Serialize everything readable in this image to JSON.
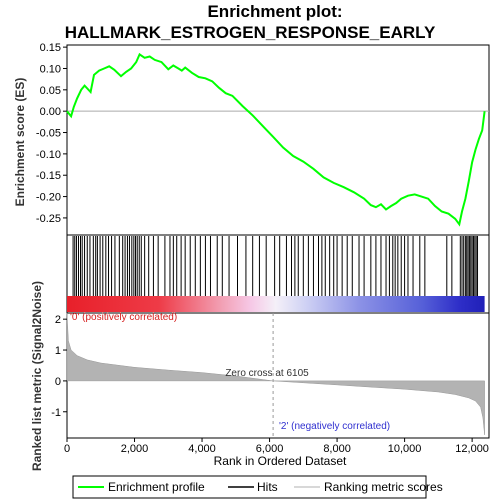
{
  "chart_data": {
    "type": "line",
    "title_line1": "Enrichment plot:",
    "title_line2": "HALLMARK_ESTROGEN_RESPONSE_EARLY",
    "ylabel_top": "Enrichment score (ES)",
    "ylabel_bottom": "Ranked list metric (Signal2Noise)",
    "xlabel": "Rank in Ordered Dataset",
    "xlim": [
      0,
      12500
    ],
    "x_ticks": [
      0,
      2000,
      4000,
      6000,
      8000,
      10000,
      12000
    ],
    "x_tick_labels": [
      "0",
      "2,000",
      "4,000",
      "6,000",
      "8,000",
      "10,000",
      "12,000"
    ],
    "es_ylim": [
      -0.29,
      0.155
    ],
    "es_ticks": [
      0.15,
      0.1,
      0.05,
      0.0,
      -0.05,
      -0.1,
      -0.15,
      -0.2,
      -0.25
    ],
    "es_tick_labels": [
      "0.15",
      "0.10",
      "0.05",
      "0.00",
      "-0.05",
      "-0.10",
      "-0.15",
      "-0.20",
      "-0.25"
    ],
    "metric_ylim": [
      -1.85,
      2.2
    ],
    "metric_ticks": [
      2,
      1,
      0,
      -1
    ],
    "metric_tick_labels": [
      "2",
      "1",
      "0",
      "-1"
    ],
    "zero_cross_rank": 6105,
    "zero_cross_label": "Zero cross at 6105",
    "pos_label": "'0' (positively correlated)",
    "neg_label": "'2' (negatively correlated)",
    "es_color": "#00ff00",
    "es_profile": [
      [
        0,
        0.0
      ],
      [
        120,
        -0.012
      ],
      [
        200,
        0.01
      ],
      [
        300,
        0.03
      ],
      [
        420,
        0.05
      ],
      [
        520,
        0.06
      ],
      [
        700,
        0.045
      ],
      [
        800,
        0.085
      ],
      [
        950,
        0.095
      ],
      [
        1100,
        0.1
      ],
      [
        1250,
        0.105
      ],
      [
        1400,
        0.097
      ],
      [
        1600,
        0.082
      ],
      [
        1750,
        0.092
      ],
      [
        1900,
        0.1
      ],
      [
        2050,
        0.115
      ],
      [
        2150,
        0.133
      ],
      [
        2300,
        0.125
      ],
      [
        2450,
        0.128
      ],
      [
        2600,
        0.12
      ],
      [
        2800,
        0.115
      ],
      [
        3000,
        0.098
      ],
      [
        3150,
        0.107
      ],
      [
        3300,
        0.1
      ],
      [
        3400,
        0.095
      ],
      [
        3500,
        0.102
      ],
      [
        3700,
        0.09
      ],
      [
        3900,
        0.08
      ],
      [
        4100,
        0.077
      ],
      [
        4300,
        0.07
      ],
      [
        4500,
        0.055
      ],
      [
        4700,
        0.042
      ],
      [
        4900,
        0.036
      ],
      [
        5200,
        0.012
      ],
      [
        5500,
        -0.01
      ],
      [
        5800,
        -0.035
      ],
      [
        6105,
        -0.06
      ],
      [
        6400,
        -0.085
      ],
      [
        6700,
        -0.105
      ],
      [
        7000,
        -0.118
      ],
      [
        7300,
        -0.135
      ],
      [
        7600,
        -0.155
      ],
      [
        7900,
        -0.168
      ],
      [
        8200,
        -0.178
      ],
      [
        8500,
        -0.19
      ],
      [
        8800,
        -0.205
      ],
      [
        9000,
        -0.22
      ],
      [
        9150,
        -0.225
      ],
      [
        9300,
        -0.218
      ],
      [
        9450,
        -0.23
      ],
      [
        9600,
        -0.222
      ],
      [
        9750,
        -0.215
      ],
      [
        9900,
        -0.205
      ],
      [
        10100,
        -0.198
      ],
      [
        10300,
        -0.195
      ],
      [
        10500,
        -0.2
      ],
      [
        10700,
        -0.205
      ],
      [
        10900,
        -0.222
      ],
      [
        11100,
        -0.235
      ],
      [
        11300,
        -0.24
      ],
      [
        11500,
        -0.252
      ],
      [
        11620,
        -0.265
      ],
      [
        11700,
        -0.235
      ],
      [
        11800,
        -0.205
      ],
      [
        11900,
        -0.165
      ],
      [
        12000,
        -0.12
      ],
      [
        12100,
        -0.09
      ],
      [
        12200,
        -0.065
      ],
      [
        12300,
        -0.045
      ],
      [
        12370,
        0.0
      ]
    ],
    "hit_ranks": [
      180,
      230,
      280,
      340,
      400,
      450,
      520,
      600,
      680,
      780,
      850,
      900,
      980,
      1060,
      1150,
      1230,
      1320,
      1420,
      1550,
      1650,
      1720,
      1790,
      1850,
      1920,
      1980,
      2030,
      2080,
      2140,
      2200,
      2300,
      2420,
      2560,
      2700,
      2900,
      3050,
      3150,
      3250,
      3380,
      3500,
      3650,
      3800,
      3950,
      4100,
      4250,
      4450,
      4600,
      4800,
      5050,
      5300,
      5500,
      5700,
      5900,
      6150,
      6300,
      6500,
      6650,
      6750,
      6850,
      7000,
      7150,
      7300,
      7450,
      7550,
      7650,
      7780,
      7900,
      8000,
      8150,
      8300,
      8450,
      8650,
      8800,
      9000,
      9150,
      9300,
      9450,
      9550,
      9650,
      9720,
      9800,
      9900,
      10000,
      10100,
      10250,
      10450,
      10600,
      11250,
      11400,
      11650,
      11700,
      11750,
      11800,
      11840,
      11880,
      11920,
      11960,
      12000,
      12040,
      12080,
      12120,
      12160
    ],
    "metric_shape": [
      [
        0,
        2.2
      ],
      [
        40,
        1.3
      ],
      [
        120,
        1.0
      ],
      [
        300,
        0.82
      ],
      [
        600,
        0.68
      ],
      [
        1000,
        0.58
      ],
      [
        2000,
        0.44
      ],
      [
        3000,
        0.35
      ],
      [
        4000,
        0.27
      ],
      [
        5000,
        0.16
      ],
      [
        6105,
        0.0
      ],
      [
        7000,
        -0.06
      ],
      [
        8000,
        -0.13
      ],
      [
        9000,
        -0.2
      ],
      [
        10000,
        -0.27
      ],
      [
        11000,
        -0.36
      ],
      [
        11500,
        -0.44
      ],
      [
        11900,
        -0.55
      ],
      [
        12100,
        -0.65
      ],
      [
        12250,
        -0.85
      ],
      [
        12320,
        -1.2
      ],
      [
        12370,
        -1.75
      ]
    ],
    "n_genes": 12370
  },
  "legend": {
    "es_label": "Enrichment profile",
    "hits_label": "Hits",
    "metric_label": "Ranking metric scores"
  }
}
